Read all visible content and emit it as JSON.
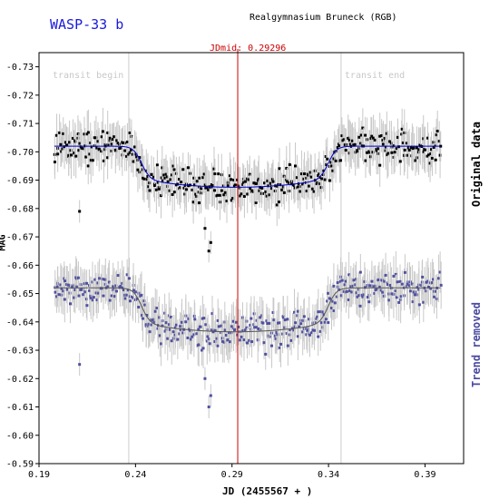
{
  "chart_data": {
    "type": "scatter",
    "title": "WASP-33 b",
    "subtitle": "Realgymnasium Bruneck (RGB)",
    "xlabel": "JD (2455567 + )",
    "ylabel": "MAG",
    "xlim": [
      0.19,
      0.41
    ],
    "ylim": [
      -0.735,
      -0.59
    ],
    "y_inverted": true,
    "x_ticks": [
      0.19,
      0.24,
      0.29,
      0.34,
      0.39
    ],
    "x_tick_labels": [
      "0.19",
      "0.24",
      "0.29",
      "0.34",
      "0.39"
    ],
    "y_ticks": [
      -0.73,
      -0.72,
      -0.71,
      -0.7,
      -0.69,
      -0.68,
      -0.67,
      -0.66,
      -0.65,
      -0.64,
      -0.63,
      -0.62,
      -0.61,
      -0.6,
      -0.59
    ],
    "y_tick_labels": [
      "-0.73",
      "-0.72",
      "-0.71",
      "-0.70",
      "-0.69",
      "-0.68",
      "-0.67",
      "-0.66",
      "-0.65",
      "-0.64",
      "-0.63",
      "-0.62",
      "-0.61",
      "-0.60",
      "-0.59"
    ],
    "jdmid": 0.29296,
    "jdmid_label": "JDmid: 0.29296",
    "transit_begin": 0.2365,
    "transit_begin_label": "transit begin",
    "transit_end": 0.3465,
    "transit_end_label": "transit end",
    "series": [
      {
        "name": "Original data",
        "color": "#000000",
        "errorbar_color": "#c8c8c8",
        "fit_color": "#0000cc",
        "baseline": -0.702,
        "depth": 0.0145,
        "errorbar": 0.006,
        "x_range": [
          0.198,
          0.398
        ],
        "point_count": 420,
        "outliers": [
          [
            0.211,
            -0.679
          ],
          [
            0.278,
            -0.665
          ],
          [
            0.279,
            -0.668
          ],
          [
            0.276,
            -0.673
          ],
          [
            0.273,
            -0.682
          ]
        ]
      },
      {
        "name": "Trend removed",
        "color": "#5050a0",
        "errorbar_color": "#c8c8c8",
        "fit_color": "#555555",
        "baseline": -0.652,
        "depth": 0.0155,
        "errorbar": 0.006,
        "x_range": [
          0.198,
          0.398
        ],
        "point_count": 420,
        "outliers": [
          [
            0.211,
            -0.625
          ],
          [
            0.278,
            -0.61
          ],
          [
            0.279,
            -0.614
          ],
          [
            0.276,
            -0.62
          ]
        ]
      }
    ],
    "grid": false,
    "legend": "right-side vertical labels"
  },
  "colors": {
    "jdmid_line": "#cc0000",
    "transit_lines": "#cccccc",
    "title": "#1a1adb"
  }
}
